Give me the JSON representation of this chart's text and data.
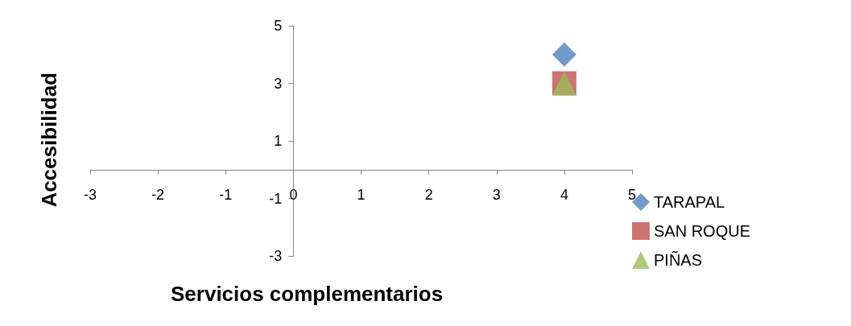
{
  "chart_data": {
    "type": "scatter",
    "xlabel": "Servicios complementarios",
    "ylabel": "Accesibilidad",
    "xlim": [
      -3,
      5
    ],
    "xticks": [
      -3,
      -2,
      -1,
      0,
      1,
      2,
      3,
      4,
      5
    ],
    "ylim": [
      -3,
      5
    ],
    "yticks": [
      -3,
      -1,
      1,
      3,
      5
    ],
    "grid": false,
    "legend": "bottom right",
    "x": [
      4
    ],
    "series": [
      {
        "name": "TARAPAL",
        "color": "#4f81bd",
        "marker": "diamond",
        "values": [
          4
        ]
      },
      {
        "name": "SAN ROQUE",
        "color": "#c0504d",
        "marker": "square",
        "values": [
          3
        ]
      },
      {
        "name": "PIÑAS",
        "color": "#9bbb59",
        "marker": "triangle",
        "values": [
          3
        ]
      }
    ]
  }
}
